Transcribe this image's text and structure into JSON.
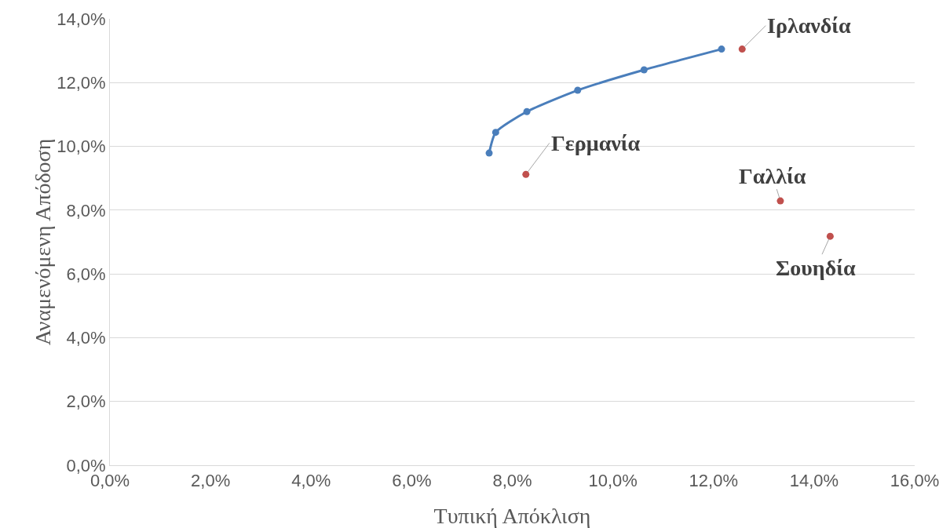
{
  "chart_data": {
    "type": "line",
    "xlabel": "Τυπική Απόκλιση",
    "ylabel": "Αναμενόμενη Απόδοση",
    "series": [
      {
        "color": "#4a7ebb",
        "x": [
          7.54,
          7.67,
          8.29,
          9.3,
          10.62,
          12.16
        ],
        "values": [
          9.79,
          10.44,
          11.09,
          11.76,
          12.4,
          13.05
        ]
      },
      {
        "type": "scatter",
        "color": "#c0504d",
        "x": [
          12.57,
          8.27,
          13.33,
          14.32
        ],
        "values": [
          13.05,
          9.12,
          8.29,
          7.18
        ]
      }
    ],
    "annotations": [
      {
        "text": "Ιρλανδία",
        "x": 12.57,
        "y": 13.05
      },
      {
        "text": "Γερμανία",
        "x": 8.27,
        "y": 9.12
      },
      {
        "text": "Γαλλία",
        "x": 13.33,
        "y": 8.29
      },
      {
        "text": "Σουηδία",
        "x": 14.32,
        "y": 7.18
      }
    ],
    "xlim": [
      0,
      16
    ],
    "xticks": [
      {
        "value": 0,
        "label": "0,0%"
      },
      {
        "value": 2,
        "label": "2,0%"
      },
      {
        "value": 4,
        "label": "4,0%"
      },
      {
        "value": 6,
        "label": "6,0%"
      },
      {
        "value": 8,
        "label": "8,0%"
      },
      {
        "value": 10,
        "label": "10,0%"
      },
      {
        "value": 12,
        "label": "12,0%"
      },
      {
        "value": 14,
        "label": "14,0%"
      },
      {
        "value": 16,
        "label": "16,0%"
      }
    ],
    "ylim": [
      0,
      14
    ],
    "yticks": [
      {
        "value": 0,
        "label": "0,0%"
      },
      {
        "value": 2,
        "label": "2,0%"
      },
      {
        "value": 4,
        "label": "4,0%"
      },
      {
        "value": 6,
        "label": "6,0%"
      },
      {
        "value": 8,
        "label": "8,0%"
      },
      {
        "value": 10,
        "label": "10,0%"
      },
      {
        "value": 12,
        "label": "12,0%"
      },
      {
        "value": 14,
        "label": "14,0%"
      }
    ],
    "grid": "y",
    "legend": false,
    "marker": "circle",
    "line_style": "solid"
  }
}
